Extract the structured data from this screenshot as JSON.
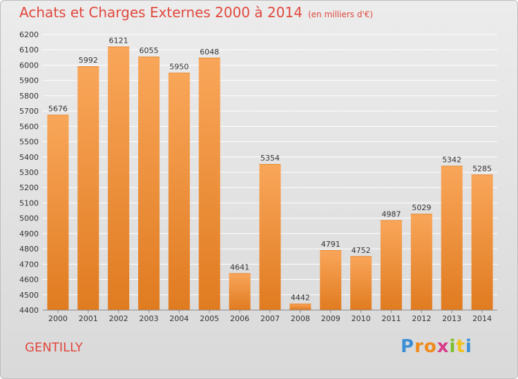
{
  "chart_data": {
    "type": "bar",
    "title": "Achats et Charges Externes 2000 à 2014",
    "subtitle": "(en milliers d'€)",
    "categories": [
      "2000",
      "2001",
      "2002",
      "2003",
      "2004",
      "2005",
      "2006",
      "2007",
      "2008",
      "2009",
      "2010",
      "2011",
      "2012",
      "2013",
      "2014"
    ],
    "values": [
      5676,
      5992,
      6121,
      6055,
      5950,
      6048,
      4641,
      5354,
      4442,
      4791,
      4752,
      4987,
      5029,
      5342,
      5285
    ],
    "ylim": [
      4400,
      6200
    ],
    "ytick_step": 100,
    "grid": true,
    "legend": "none",
    "bar_color_top": "#f9a65a",
    "bar_color_bottom": "#e07b20"
  },
  "footer": {
    "city": "GENTILLY",
    "logo_letters": [
      "P",
      "r",
      "o",
      "x",
      "i",
      "t",
      "i"
    ],
    "logo_colors": [
      "#3a8fd6",
      "#f08a1c",
      "#f08a1c",
      "#d83a8a",
      "#7cbf2a",
      "#f0c21c",
      "#3a8fd6"
    ]
  }
}
